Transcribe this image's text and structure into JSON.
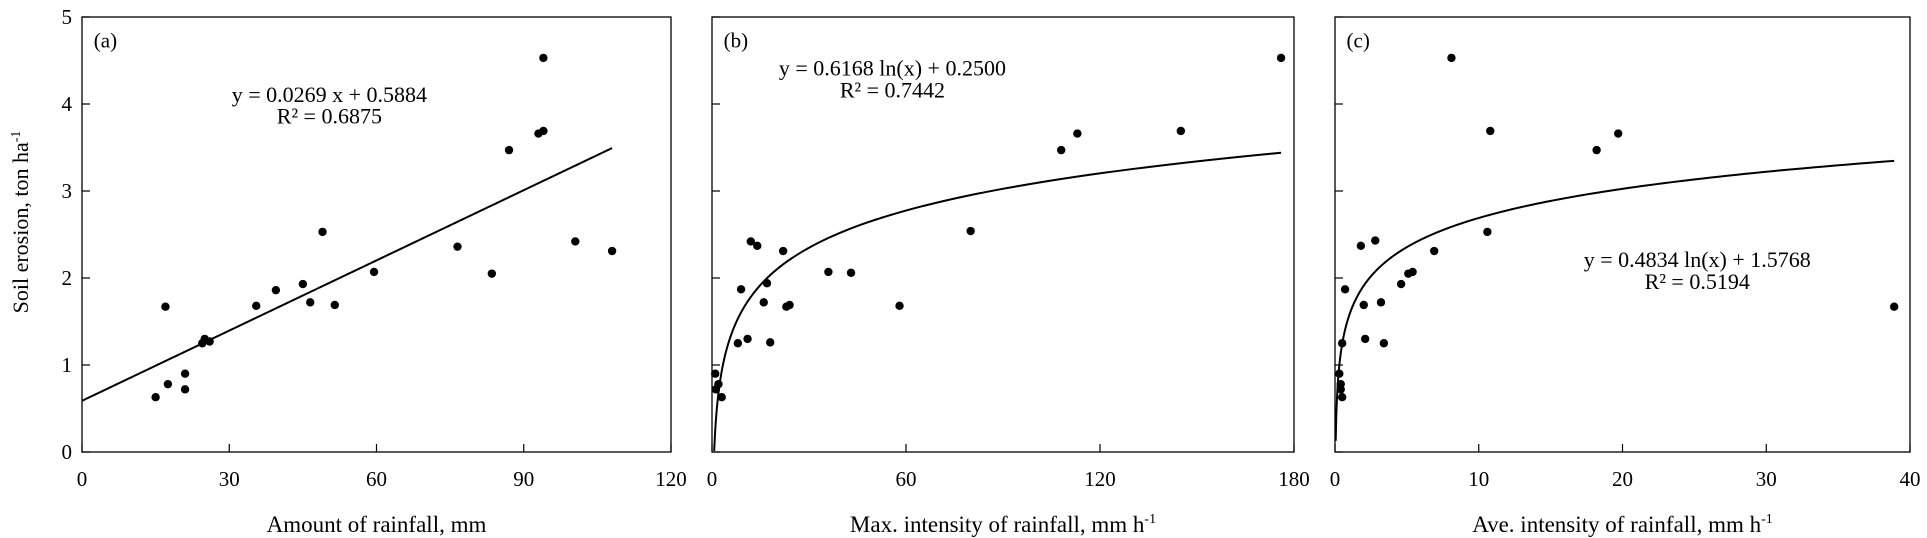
{
  "figure": {
    "ylabel_main": "Soil erosion, ton ha",
    "ylabel_sup": "-1"
  },
  "chart_data": [
    {
      "type": "scatter",
      "panel_label": "(a)",
      "xlabel_main": "Amount of rainfall, mm",
      "xlabel_sup": "",
      "xlim": [
        0,
        120
      ],
      "ylim": [
        0,
        5
      ],
      "xticks": [
        0,
        30,
        60,
        90,
        120
      ],
      "yticks": [
        0,
        1,
        2,
        3,
        4,
        5
      ],
      "points": [
        [
          15,
          0.63
        ],
        [
          17,
          1.67
        ],
        [
          17.5,
          0.78
        ],
        [
          21,
          0.9
        ],
        [
          21,
          0.72
        ],
        [
          24.5,
          1.25
        ],
        [
          25,
          1.3
        ],
        [
          26,
          1.27
        ],
        [
          35.5,
          1.68
        ],
        [
          39.5,
          1.86
        ],
        [
          45,
          1.93
        ],
        [
          46.5,
          1.72
        ],
        [
          49,
          2.53
        ],
        [
          51.5,
          1.69
        ],
        [
          59.5,
          2.07
        ],
        [
          76.5,
          2.36
        ],
        [
          83.5,
          2.05
        ],
        [
          87,
          3.47
        ],
        [
          93,
          3.66
        ],
        [
          94,
          4.53
        ],
        [
          94,
          3.69
        ],
        [
          100.5,
          2.42
        ],
        [
          108,
          2.31
        ]
      ],
      "fit": {
        "kind": "linear",
        "slope": 0.0269,
        "intercept": 0.5884,
        "x_range": [
          0,
          108
        ]
      },
      "equation": "y = 0.0269 x + 0.5884",
      "r2": "R² = 0.6875"
    },
    {
      "type": "scatter",
      "panel_label": "(b)",
      "xlabel_main": "Max. intensity of rainfall, mm h",
      "xlabel_sup": "-1",
      "xlim": [
        0,
        180
      ],
      "ylim": [
        0,
        5
      ],
      "xticks": [
        0,
        60,
        120,
        180
      ],
      "yticks": [
        0,
        1,
        2,
        3,
        4,
        5
      ],
      "points": [
        [
          1,
          0.9
        ],
        [
          1.2,
          0.72
        ],
        [
          2,
          0.78
        ],
        [
          3,
          0.63
        ],
        [
          8,
          1.25
        ],
        [
          9,
          1.87
        ],
        [
          11,
          1.3
        ],
        [
          12,
          2.42
        ],
        [
          14,
          2.37
        ],
        [
          16,
          1.72
        ],
        [
          17,
          1.94
        ],
        [
          18,
          1.26
        ],
        [
          22,
          2.31
        ],
        [
          23,
          1.67
        ],
        [
          24,
          1.69
        ],
        [
          36,
          2.07
        ],
        [
          43,
          2.06
        ],
        [
          58,
          1.68
        ],
        [
          80,
          2.54
        ],
        [
          108,
          3.47
        ],
        [
          113,
          3.66
        ],
        [
          145,
          3.69
        ],
        [
          176,
          4.53
        ]
      ],
      "fit": {
        "kind": "log",
        "a": 0.6168,
        "b": 0.25,
        "x_range": [
          0.68,
          176
        ]
      },
      "equation": "y = 0.6168 ln(x) + 0.2500",
      "r2": "R² = 0.7442"
    },
    {
      "type": "scatter",
      "panel_label": "(c)",
      "xlabel_main": "Ave. intensity of rainfall, mm h",
      "xlabel_sup": "-1",
      "xlim": [
        0,
        40
      ],
      "ylim": [
        0,
        5
      ],
      "xticks": [
        0,
        10,
        20,
        30,
        40
      ],
      "yticks": [
        0,
        1,
        2,
        3,
        4,
        5
      ],
      "points": [
        [
          0.3,
          0.9
        ],
        [
          0.4,
          0.78
        ],
        [
          0.4,
          0.72
        ],
        [
          0.5,
          0.63
        ],
        [
          0.5,
          1.25
        ],
        [
          0.7,
          1.87
        ],
        [
          1.8,
          2.37
        ],
        [
          2.0,
          1.69
        ],
        [
          2.1,
          1.3
        ],
        [
          2.8,
          2.43
        ],
        [
          3.2,
          1.72
        ],
        [
          3.4,
          1.25
        ],
        [
          4.6,
          1.93
        ],
        [
          5.1,
          2.05
        ],
        [
          5.4,
          2.07
        ],
        [
          6.9,
          2.31
        ],
        [
          8.1,
          4.53
        ],
        [
          10.6,
          2.53
        ],
        [
          10.8,
          3.69
        ],
        [
          18.2,
          3.47
        ],
        [
          19.7,
          3.66
        ],
        [
          38.9,
          1.67
        ]
      ],
      "fit": {
        "kind": "log",
        "a": 0.4834,
        "b": 1.5768,
        "x_range": [
          0.05,
          38.9
        ]
      },
      "equation": "y = 0.4834 ln(x) + 1.5768",
      "r2": "R² = 0.5194"
    }
  ]
}
